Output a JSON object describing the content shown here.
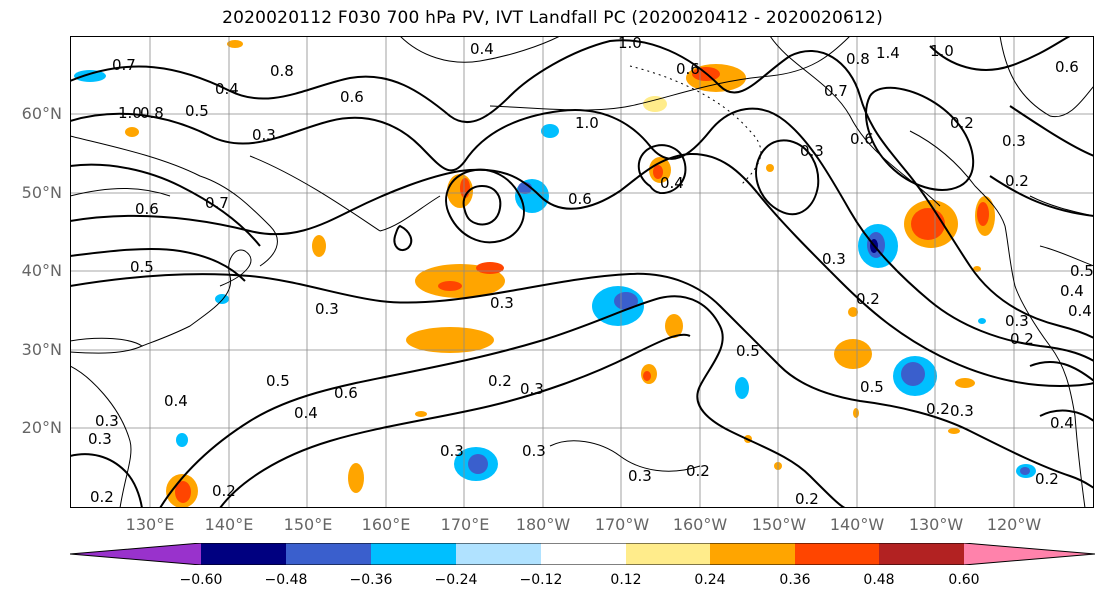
{
  "title": "2020020112 F030 700 hPa PV, IVT Landfall PC (2020020412 - 2020020612)",
  "lat_labels": [
    "60°N",
    "50°N",
    "40°N",
    "30°N",
    "20°N"
  ],
  "lon_labels": [
    "130°E",
    "140°E",
    "150°E",
    "160°E",
    "170°E",
    "180°W",
    "170°W",
    "160°W",
    "150°W",
    "140°W",
    "130°W",
    "120°W"
  ],
  "colorbar": {
    "ticks": [
      "−0.60",
      "−0.48",
      "−0.36",
      "−0.24",
      "−0.12",
      "0.12",
      "0.24",
      "0.36",
      "0.48",
      "0.60"
    ],
    "colors": [
      "#9932cc",
      "#000080",
      "#3a5fcd",
      "#00bfff",
      "#b0e2ff",
      "#ffffff",
      "#ffec8b",
      "#ffa500",
      "#ff4500",
      "#b22222",
      "#ff82ab"
    ]
  },
  "contour_labels": [
    "0.7",
    "0.8",
    "0.4",
    "0.6",
    "0.5",
    "0.3",
    "1.0",
    "0.8",
    "0.7",
    "0.6",
    "0.5",
    "0.4",
    "0.3",
    "1.0",
    "0.6",
    "0.4",
    "1.0",
    "0.3",
    "0.6",
    "0.8",
    "0.7",
    "0.6",
    "0.3",
    "0.5",
    "0.4",
    "0.3",
    "0.3",
    "0.5",
    "0.2",
    "0.3",
    "0.5",
    "0.6",
    "0.4",
    "0.3",
    "0.2",
    "0.3",
    "0.2",
    "0.4",
    "0.3",
    "0.2",
    "0.2",
    "0.3",
    "0.2",
    "0.2",
    "0.3",
    "0.4",
    "0.3",
    "0.2",
    "0.5",
    "0.4",
    "0.2",
    "0.3",
    "0.2",
    "0.2",
    "1.4",
    "1.0",
    "0.6"
  ]
}
